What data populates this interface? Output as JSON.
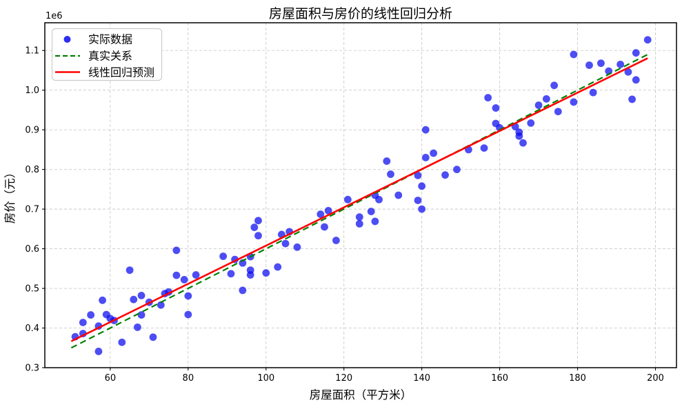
{
  "chart_data": {
    "type": "scatter",
    "title": "房屋面积与房价的线性回归分析",
    "xlabel": "房屋面积（平方米）",
    "ylabel": "房价（元）",
    "y_offset_label": "1e6",
    "grid": true,
    "xlim": [
      43.2,
      205.4
    ],
    "ylim": [
      300000,
      1170000
    ],
    "x_ticks": [
      60,
      80,
      100,
      120,
      140,
      160,
      180,
      200
    ],
    "y_ticks": [
      300000,
      400000,
      500000,
      600000,
      700000,
      800000,
      900000,
      1000000,
      1100000
    ],
    "colors": {
      "scatter": "#0808f0",
      "true_line": "#008000",
      "pred_line": "#ff0000",
      "grid": "#c9c9c9",
      "legend_border": "#cccccc"
    },
    "legend": {
      "position": "upper-left",
      "entries": [
        {
          "label": "实际数据",
          "marker": "dot",
          "color": "#0808f0"
        },
        {
          "label": "真实关系",
          "marker": "dashed-line",
          "color": "#008000"
        },
        {
          "label": "线性回归预测",
          "marker": "solid-line",
          "color": "#ff0000"
        }
      ]
    },
    "series": [
      {
        "name": "实际数据",
        "type": "scatter",
        "color": "#0808f0",
        "opacity": 0.72,
        "points": [
          [
            51,
            378000
          ],
          [
            53,
            414000
          ],
          [
            53,
            386000
          ],
          [
            55,
            433000
          ],
          [
            57,
            405000
          ],
          [
            57,
            341000
          ],
          [
            58,
            470000
          ],
          [
            59,
            434000
          ],
          [
            60,
            424000
          ],
          [
            61,
            419000
          ],
          [
            63,
            364000
          ],
          [
            65,
            546000
          ],
          [
            66,
            472000
          ],
          [
            67,
            402000
          ],
          [
            68,
            482000
          ],
          [
            68,
            433000
          ],
          [
            70,
            465000
          ],
          [
            71,
            377000
          ],
          [
            73,
            458000
          ],
          [
            74,
            487000
          ],
          [
            75,
            491000
          ],
          [
            77,
            533000
          ],
          [
            77,
            596000
          ],
          [
            79,
            522000
          ],
          [
            80,
            481000
          ],
          [
            80,
            434000
          ],
          [
            82,
            534000
          ],
          [
            89,
            581000
          ],
          [
            91,
            537000
          ],
          [
            92,
            573000
          ],
          [
            94,
            564000
          ],
          [
            94,
            495000
          ],
          [
            96,
            580000
          ],
          [
            96,
            546000
          ],
          [
            96,
            534000
          ],
          [
            97,
            654000
          ],
          [
            98,
            671000
          ],
          [
            98,
            633000
          ],
          [
            100,
            539000
          ],
          [
            103,
            554000
          ],
          [
            104,
            636000
          ],
          [
            105,
            613000
          ],
          [
            106,
            643000
          ],
          [
            108,
            604000
          ],
          [
            114,
            687000
          ],
          [
            115,
            655000
          ],
          [
            116,
            696000
          ],
          [
            118,
            621000
          ],
          [
            121,
            724000
          ],
          [
            124,
            680000
          ],
          [
            124,
            663000
          ],
          [
            127,
            694000
          ],
          [
            128,
            669000
          ],
          [
            128,
            735000
          ],
          [
            129,
            724000
          ],
          [
            131,
            821000
          ],
          [
            132,
            788000
          ],
          [
            134,
            735000
          ],
          [
            139,
            785000
          ],
          [
            139,
            722000
          ],
          [
            140,
            758000
          ],
          [
            140,
            700000
          ],
          [
            141,
            900000
          ],
          [
            141,
            830000
          ],
          [
            143,
            841000
          ],
          [
            146,
            786000
          ],
          [
            149,
            800000
          ],
          [
            152,
            850000
          ],
          [
            156,
            854000
          ],
          [
            157,
            981000
          ],
          [
            159,
            955000
          ],
          [
            159,
            916000
          ],
          [
            160,
            905000
          ],
          [
            164,
            908000
          ],
          [
            165,
            894000
          ],
          [
            165,
            884000
          ],
          [
            166,
            867000
          ],
          [
            168,
            917000
          ],
          [
            170,
            962000
          ],
          [
            172,
            978000
          ],
          [
            174,
            1012000
          ],
          [
            175,
            946000
          ],
          [
            179,
            970000
          ],
          [
            179,
            1090000
          ],
          [
            183,
            1063000
          ],
          [
            184,
            994000
          ],
          [
            186,
            1068000
          ],
          [
            188,
            1048000
          ],
          [
            191,
            1065000
          ],
          [
            193,
            1046000
          ],
          [
            195,
            1094000
          ],
          [
            195,
            1026000
          ],
          [
            194,
            977000
          ],
          [
            198,
            1127000
          ]
        ]
      },
      {
        "name": "真实关系",
        "type": "line",
        "style": "dashed",
        "color": "#008000",
        "x_range": [
          50,
          198
        ],
        "slope": 5000,
        "intercept": 100000
      },
      {
        "name": "线性回归预测",
        "type": "line",
        "style": "solid",
        "color": "#ff0000",
        "x_range": [
          50,
          198
        ],
        "slope": 4822,
        "intercept": 125700
      }
    ]
  }
}
